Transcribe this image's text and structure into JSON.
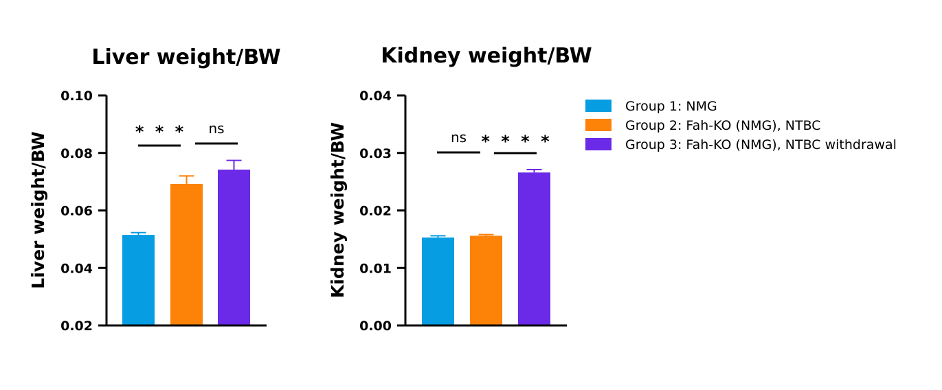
{
  "chart_data": [
    {
      "type": "bar",
      "title": "Liver weight/BW",
      "ylabel": "Liver weight/BW",
      "xlabel": "",
      "ylim": [
        0.02,
        0.1
      ],
      "yticks": [
        "0.02",
        "0.04",
        "0.06",
        "0.08",
        "0.10"
      ],
      "yticks_values": [
        0.02,
        0.04,
        0.06,
        0.08,
        0.1
      ],
      "categories": [
        "Group 1: NMG",
        "Group 2: Fah-KO (NMG), NTBC",
        "Group 3: Fah-KO (NMG), NTBC withdrawal"
      ],
      "values": [
        0.0515,
        0.0692,
        0.0742
      ],
      "errors": [
        0.0008,
        0.0028,
        0.0032
      ],
      "significance": [
        {
          "from": 0,
          "to": 1,
          "label": "* * *"
        },
        {
          "from": 1,
          "to": 2,
          "label": "ns"
        }
      ]
    },
    {
      "type": "bar",
      "title": "Kidney weight/BW",
      "ylabel": "Kidney weight/BW",
      "xlabel": "",
      "ylim": [
        0.0,
        0.04
      ],
      "yticks": [
        "0.00",
        "0.01",
        "0.02",
        "0.03",
        "0.04"
      ],
      "yticks_values": [
        0.0,
        0.01,
        0.02,
        0.03,
        0.04
      ],
      "categories": [
        "Group 1: NMG",
        "Group 2: Fah-KO (NMG), NTBC",
        "Group 3: Fah-KO (NMG), NTBC withdrawal"
      ],
      "values": [
        0.0153,
        0.0156,
        0.0266
      ],
      "errors": [
        0.0003,
        0.0002,
        0.0005
      ],
      "significance": [
        {
          "from": 0,
          "to": 1,
          "label": "ns"
        },
        {
          "from": 1,
          "to": 2,
          "label": "* * * *"
        }
      ]
    }
  ],
  "legend": {
    "position": "right",
    "items": [
      {
        "label": "Group 1: NMG",
        "color": "#069DE2"
      },
      {
        "label": "Group 2: Fah-KO (NMG), NTBC",
        "color": "#FD8208"
      },
      {
        "label": "Group 3: Fah-KO (NMG), NTBC withdrawal",
        "color": "#6A2AE8"
      }
    ]
  },
  "colors": [
    "#069DE2",
    "#FD8208",
    "#6A2AE8"
  ]
}
